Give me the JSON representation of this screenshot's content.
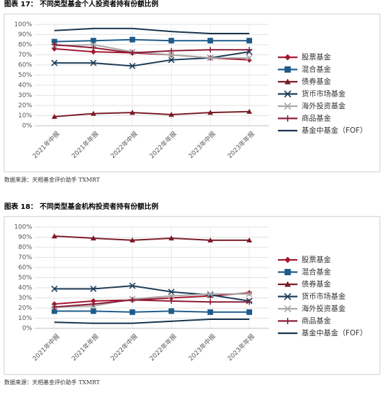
{
  "chart_data": [
    {
      "type": "line",
      "title": "图表 17：  不同类型基金个人投资者持有份额比例",
      "source": "数据来源：天相基金评价助手 TXMRT",
      "categories": [
        "2021年中报",
        "2021年年报",
        "2022年中报",
        "2022年年报",
        "2023年中报",
        "2023年年报"
      ],
      "ylim": [
        0,
        100
      ],
      "yticks": [
        {
          "value": 0,
          "label": "0%"
        },
        {
          "value": 10,
          "label": "10%"
        },
        {
          "value": 20,
          "label": "20%"
        },
        {
          "value": 30,
          "label": "30%"
        },
        {
          "value": 40,
          "label": "40%"
        },
        {
          "value": 50,
          "label": "50%"
        },
        {
          "value": 60,
          "label": "60%"
        },
        {
          "value": 70,
          "label": "70%"
        },
        {
          "value": 80,
          "label": "80%"
        },
        {
          "value": 90,
          "label": "90%"
        },
        {
          "value": 100,
          "label": "100%"
        }
      ],
      "grid": true,
      "legend": "right",
      "series": [
        {
          "name": "股票基金",
          "color": "#a3162f",
          "marker": "diamond",
          "values": [
            76,
            73,
            72,
            70,
            67,
            65
          ]
        },
        {
          "name": "混合基金",
          "color": "#1f5c8b",
          "marker": "square",
          "values": [
            83,
            84,
            85,
            84,
            84,
            84
          ]
        },
        {
          "name": "债券基金",
          "color": "#7b1a26",
          "marker": "triangle",
          "values": [
            9,
            12,
            13,
            11,
            13,
            14
          ]
        },
        {
          "name": "货币市场基金",
          "color": "#1d3c57",
          "marker": "x",
          "values": [
            62,
            62,
            59,
            65,
            67,
            73
          ]
        },
        {
          "name": "海外投资基金",
          "color": "#a8a8a8",
          "marker": "x",
          "values": [
            79,
            80,
            73,
            70,
            67,
            67
          ]
        },
        {
          "name": "商品基金",
          "color": "#8b1a36",
          "marker": "plus",
          "values": [
            80,
            77,
            72,
            74,
            75,
            75
          ]
        },
        {
          "name": "基金中基金（FOF）",
          "color": "#17324d",
          "marker": "none",
          "values": [
            94,
            96,
            96,
            93,
            91,
            91
          ]
        }
      ]
    },
    {
      "type": "line",
      "title": "图表 18：  不同类型基金机构投资者持有份额比例",
      "source": "数据来源：天相基金评价助手 TXMRT",
      "categories": [
        "2021年中报",
        "2021年年报",
        "2022年中报",
        "2022年年报",
        "2023年中报",
        "2023年年报"
      ],
      "ylim": [
        0,
        100
      ],
      "yticks": [
        {
          "value": 0,
          "label": "0%"
        },
        {
          "value": 10,
          "label": "10%"
        },
        {
          "value": 20,
          "label": "20%"
        },
        {
          "value": 30,
          "label": "30%"
        },
        {
          "value": 40,
          "label": "40%"
        },
        {
          "value": 50,
          "label": "50%"
        },
        {
          "value": 60,
          "label": "60%"
        },
        {
          "value": 70,
          "label": "70%"
        },
        {
          "value": 80,
          "label": "80%"
        },
        {
          "value": 90,
          "label": "90%"
        },
        {
          "value": 100,
          "label": "100%"
        }
      ],
      "grid": true,
      "legend": "right",
      "series": [
        {
          "name": "股票基金",
          "color": "#a3162f",
          "marker": "diamond",
          "values": [
            24,
            27,
            28,
            30,
            32,
            35
          ]
        },
        {
          "name": "混合基金",
          "color": "#1f5c8b",
          "marker": "square",
          "values": [
            17,
            17,
            16,
            17,
            16,
            16
          ]
        },
        {
          "name": "债券基金",
          "color": "#7b1a26",
          "marker": "triangle",
          "values": [
            91,
            89,
            87,
            89,
            87,
            87
          ]
        },
        {
          "name": "货币市场基金",
          "color": "#1d3c57",
          "marker": "x",
          "values": [
            39,
            39,
            42,
            36,
            33,
            27
          ]
        },
        {
          "name": "海外投资基金",
          "color": "#a8a8a8",
          "marker": "x",
          "values": [
            21,
            22,
            29,
            32,
            34,
            34
          ]
        },
        {
          "name": "商品基金",
          "color": "#8b1a36",
          "marker": "plus",
          "values": [
            21,
            24,
            28,
            27,
            26,
            26
          ]
        },
        {
          "name": "基金中基金（FOF）",
          "color": "#17324d",
          "marker": "none",
          "values": [
            6,
            5,
            5,
            7,
            9,
            9
          ]
        }
      ]
    }
  ]
}
